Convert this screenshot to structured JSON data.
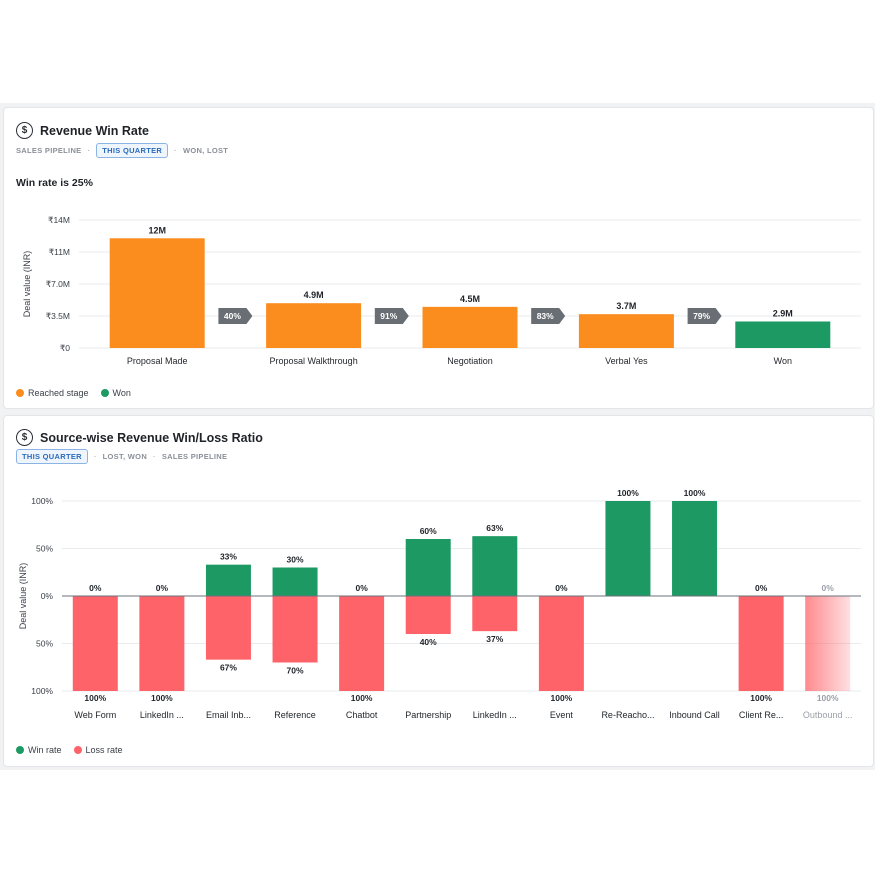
{
  "colors": {
    "reached": "#fb8c1e",
    "won": "#1d9a63",
    "loss": "#fd6369",
    "grid": "#e9ebee",
    "step_badge": "#696e74"
  },
  "funnel_card": {
    "icon": "dollar-circle-icon",
    "title": "Revenue Win Rate",
    "meta": [
      "SALES PIPELINE",
      "THIS QUARTER",
      "WON, LOST"
    ],
    "headline": "Win rate is 25%",
    "legend": [
      {
        "label": "Reached stage",
        "color": "#fb8c1e"
      },
      {
        "label": "Won",
        "color": "#1d9a63"
      }
    ]
  },
  "ratio_card": {
    "icon": "dollar-circle-icon",
    "title": "Source-wise Revenue Win/Loss Ratio",
    "meta": [
      "THIS QUARTER",
      "LOST, WON",
      "SALES PIPELINE"
    ],
    "legend": [
      {
        "label": "Win rate",
        "color": "#1d9a63"
      },
      {
        "label": "Loss rate",
        "color": "#fd6369"
      }
    ]
  },
  "chart_data": [
    {
      "type": "bar",
      "title": "Revenue Win Rate",
      "ylabel": "Deal value (INR)",
      "yticks": [
        "₹0",
        "₹3.5M",
        "₹7.0M",
        "₹11M",
        "₹14M"
      ],
      "ylim": [
        0,
        14000000
      ],
      "categories": [
        "Proposal Made",
        "Proposal Walkthrough",
        "Negotiation",
        "Verbal Yes",
        "Won"
      ],
      "values": [
        12000000,
        4900000,
        4500000,
        3700000,
        2900000
      ],
      "value_labels": [
        "12M",
        "4.9M",
        "4.5M",
        "3.7M",
        "2.9M"
      ],
      "series_by_bar": [
        "Reached stage",
        "Reached stage",
        "Reached stage",
        "Reached stage",
        "Won"
      ],
      "conversion_rates": [
        "40%",
        "91%",
        "83%",
        "79%"
      ],
      "grid": true
    },
    {
      "type": "bar",
      "title": "Source-wise Revenue Win/Loss Ratio",
      "ylabel": "Deal value (INR)",
      "yticks": [
        "100%",
        "50%",
        "0%",
        "50%",
        "100%"
      ],
      "ylim": [
        -100,
        100
      ],
      "categories": [
        "Web Form",
        "LinkedIn ...",
        "Email Inb...",
        "Reference",
        "Chatbot",
        "Partnership",
        "LinkedIn ...",
        "Event",
        "Re-Reacho...",
        "Inbound Call",
        "Client Re...",
        "Outbound ..."
      ],
      "series": [
        {
          "name": "Win rate",
          "values": [
            0,
            0,
            33,
            30,
            0,
            60,
            63,
            0,
            100,
            100,
            0,
            0
          ],
          "labels": [
            "0%",
            "0%",
            "33%",
            "30%",
            "0%",
            "60%",
            "63%",
            "0%",
            "100%",
            "100%",
            "0%",
            "0%"
          ]
        },
        {
          "name": "Loss rate",
          "values": [
            100,
            100,
            67,
            70,
            100,
            40,
            37,
            100,
            0,
            0,
            100,
            100
          ],
          "labels": [
            "100%",
            "100%",
            "67%",
            "70%",
            "100%",
            "40%",
            "37%",
            "100%",
            "",
            "",
            "100%",
            "100%"
          ]
        }
      ],
      "faded_last_category": true,
      "grid": true
    }
  ]
}
